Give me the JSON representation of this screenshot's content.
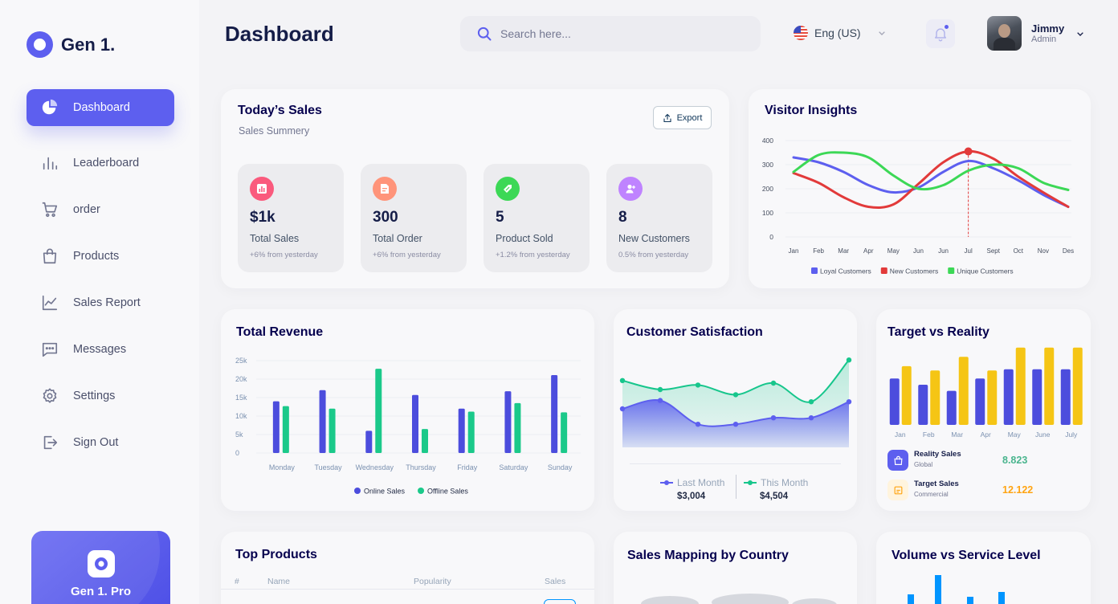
{
  "app": {
    "name": "Gen 1."
  },
  "sidebar": {
    "items": [
      {
        "label": "Dashboard",
        "icon": "pie-chart-icon",
        "active": true
      },
      {
        "label": "Leaderboard",
        "icon": "bar-chart-icon"
      },
      {
        "label": "order",
        "icon": "cart-icon"
      },
      {
        "label": "Products",
        "icon": "bag-icon"
      },
      {
        "label": "Sales Report",
        "icon": "line-chart-icon"
      },
      {
        "label": "Messages",
        "icon": "message-icon"
      },
      {
        "label": "Settings",
        "icon": "gear-icon"
      },
      {
        "label": "Sign Out",
        "icon": "sign-out-icon"
      }
    ],
    "pro": {
      "title": "Gen 1. Pro"
    }
  },
  "header": {
    "title": "Dashboard",
    "search_placeholder": "Search here...",
    "language": "Eng (US)",
    "user": {
      "name": "Jimmy",
      "role": "Admin"
    }
  },
  "todays_sales": {
    "title": "Today’s Sales",
    "subtitle": "Sales Summery",
    "export_label": "Export",
    "stats": [
      {
        "value": "$1k",
        "label": "Total Sales",
        "change": "+6% from yesterday",
        "color": "#fa5a7d",
        "icon": "bar-chart-icon"
      },
      {
        "value": "300",
        "label": "Total Order",
        "change": "+6% from yesterday",
        "color": "#ff947a",
        "icon": "document-icon"
      },
      {
        "value": "5",
        "label": "Product Sold",
        "change": "+1.2% from yesterday",
        "color": "#3cd856",
        "icon": "tag-icon"
      },
      {
        "value": "8",
        "label": "New Customers",
        "change": "0.5% from yesterday",
        "color": "#bf83ff",
        "icon": "user-add-icon"
      }
    ]
  },
  "visitor_insights": {
    "title": "Visitor Insights"
  },
  "total_revenue": {
    "title": "Total Revenue"
  },
  "customer_satisfaction": {
    "title": "Customer Satisfaction",
    "last_month": {
      "label": "Last Month",
      "value": "$3,004"
    },
    "this_month": {
      "label": "This Month",
      "value": "$4,504"
    }
  },
  "target_vs_reality": {
    "title": "Target vs Reality",
    "reality": {
      "label": "Reality Sales",
      "sub": "Global",
      "value": "8.823"
    },
    "target": {
      "label": "Target Sales",
      "sub": "Commercial",
      "value": "12.122"
    }
  },
  "top_products": {
    "title": "Top Products",
    "columns": [
      "#",
      "Name",
      "Popularity",
      "Sales"
    ]
  },
  "sales_mapping": {
    "title": "Sales Mapping by Country"
  },
  "volume_service": {
    "title": "Volume vs Service Level"
  },
  "chart_data": [
    {
      "id": "visitor",
      "type": "line",
      "title": "Visitor Insights",
      "categories": [
        "Jan",
        "Feb",
        "Mar",
        "Apr",
        "May",
        "Jun",
        "Jun",
        "Jul",
        "Sept",
        "Oct",
        "Nov",
        "Des"
      ],
      "ylim": [
        0,
        400
      ],
      "yticks": [
        0,
        100,
        200,
        300,
        400
      ],
      "legend": "bottom",
      "series": [
        {
          "name": "Loyal Customers",
          "color": "#5d5fef",
          "values": [
            330,
            310,
            270,
            215,
            185,
            205,
            270,
            315,
            285,
            235,
            175,
            125
          ]
        },
        {
          "name": "New Customers",
          "color": "#e23a3a",
          "values": [
            265,
            225,
            165,
            125,
            135,
            220,
            310,
            355,
            325,
            250,
            185,
            125
          ]
        },
        {
          "name": "Unique Customers",
          "color": "#3cd856",
          "values": [
            270,
            340,
            350,
            330,
            255,
            200,
            215,
            275,
            300,
            285,
            225,
            195
          ]
        }
      ]
    },
    {
      "id": "revenue",
      "type": "bar",
      "title": "Total Revenue",
      "categories": [
        "Monday",
        "Tuesday",
        "Wednesday",
        "Thursday",
        "Friday",
        "Saturday",
        "Sunday"
      ],
      "ylim": [
        0,
        25000
      ],
      "yticks": [
        "0",
        "5k",
        "10k",
        "15k",
        "20k",
        "25k"
      ],
      "legend": "bottom",
      "series": [
        {
          "name": "Online Sales",
          "color": "#4c4ddd",
          "values": [
            14000,
            17000,
            6000,
            15700,
            12000,
            16700,
            21100
          ]
        },
        {
          "name": "Offline Sales",
          "color": "#1bc98a",
          "values": [
            12700,
            12000,
            22800,
            6500,
            11200,
            13500,
            11000
          ]
        }
      ]
    },
    {
      "id": "satisfaction",
      "type": "area",
      "title": "Customer Satisfaction",
      "x": [
        1,
        2,
        3,
        4,
        5,
        6,
        7
      ],
      "series": [
        {
          "name": "Last Month",
          "color": "#5d5fef",
          "values": [
            3.0,
            3.65,
            1.8,
            1.8,
            2.3,
            2.3,
            3.55
          ]
        },
        {
          "name": "This Month",
          "color": "#17c68c",
          "values": [
            5.2,
            4.5,
            4.85,
            4.1,
            5.0,
            3.55,
            6.8
          ]
        }
      ]
    },
    {
      "id": "target",
      "type": "bar",
      "title": "Target vs Reality",
      "categories": [
        "Jan",
        "Feb",
        "Mar",
        "Apr",
        "May",
        "June",
        "July"
      ],
      "series": [
        {
          "name": "Reality Sales",
          "color": "#4c4ddd",
          "values": [
            7.5,
            6.5,
            5.5,
            7.5,
            9.0,
            9.0,
            9.0
          ]
        },
        {
          "name": "Target Sales",
          "color": "#f5c515",
          "values": [
            9.5,
            8.8,
            11.0,
            8.8,
            12.5,
            12.5,
            12.5
          ]
        }
      ]
    },
    {
      "id": "volume",
      "type": "bar",
      "title": "Volume vs Service Level",
      "series": [
        {
          "name": "Volume",
          "color": "#0095ff",
          "values": [
            4,
            12,
            3,
            5
          ]
        }
      ]
    }
  ]
}
